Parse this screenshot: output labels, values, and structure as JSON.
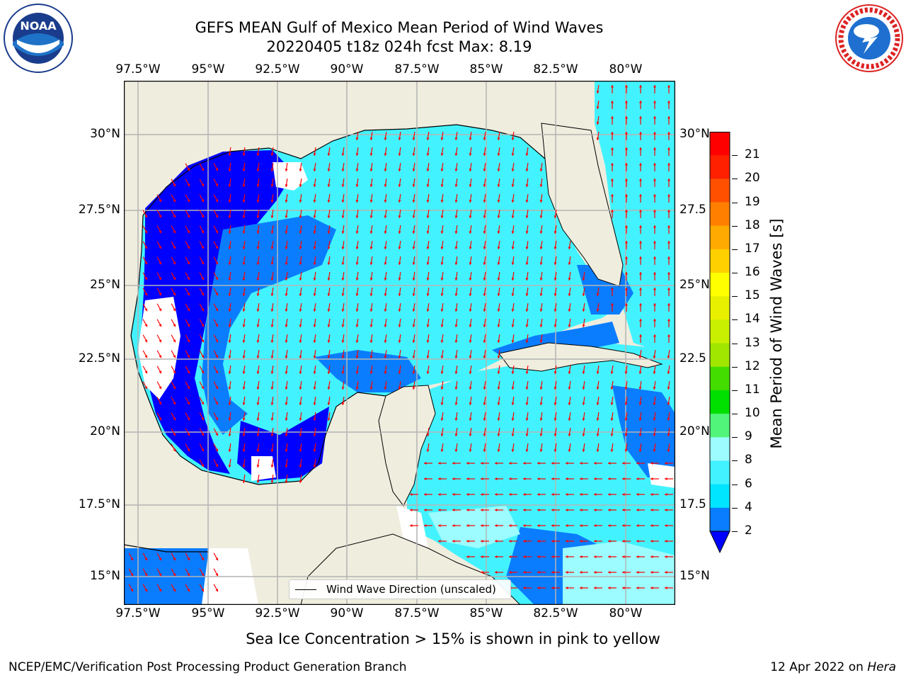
{
  "title_line1": "GEFS MEAN Gulf of Mexico Mean Period of Wind Waves",
  "title_line2": "20220405 t18z 024h fcst   Max: 8.19",
  "lon_labels": [
    "97.5°W",
    "95°W",
    "92.5°W",
    "90°W",
    "87.5°W",
    "85°W",
    "82.5°W",
    "80°W"
  ],
  "lat_labels": [
    "30°N",
    "27.5°N",
    "25°N",
    "22.5°N",
    "20°N",
    "17.5°N",
    "15°N"
  ],
  "lat_labels_right": [
    "30°N",
    "27.5",
    "25°N",
    "22.5",
    "20°N",
    "17.5",
    "15°N"
  ],
  "colorbar": {
    "label": "Mean Period of Wind Waves [s]",
    "ticks": [
      "2",
      "4",
      "6",
      "8",
      "9",
      "10",
      "11",
      "12",
      "13",
      "14",
      "15",
      "16",
      "17",
      "18",
      "19",
      "20",
      "21"
    ],
    "colors": [
      "#0000ff",
      "#0a7dff",
      "#00e5ff",
      "#42f3ff",
      "#9cfcff",
      "#50f57a",
      "#00e000",
      "#44dd00",
      "#a0e600",
      "#c8f000",
      "#e8f000",
      "#ffff00",
      "#ffd000",
      "#ffaa00",
      "#ff8000",
      "#ff5000",
      "#ff2000",
      "#ff0000"
    ]
  },
  "legend_text": "Wind Wave Direction (unscaled)",
  "footer_note": "Sea Ice Concentration > 15% is shown in pink to yellow",
  "footer_left": "NCEP/EMC/Verification Post Processing Product Generation Branch",
  "footer_date": "12 Apr 2022 on ",
  "footer_host": "Hera",
  "logos": [
    "noaa-logo",
    "national-weather-service-logo"
  ],
  "map_colors": {
    "land": "#efedde",
    "grid": "#b4b4b4",
    "arrows": "#ff0000",
    "coast": "#000000"
  }
}
